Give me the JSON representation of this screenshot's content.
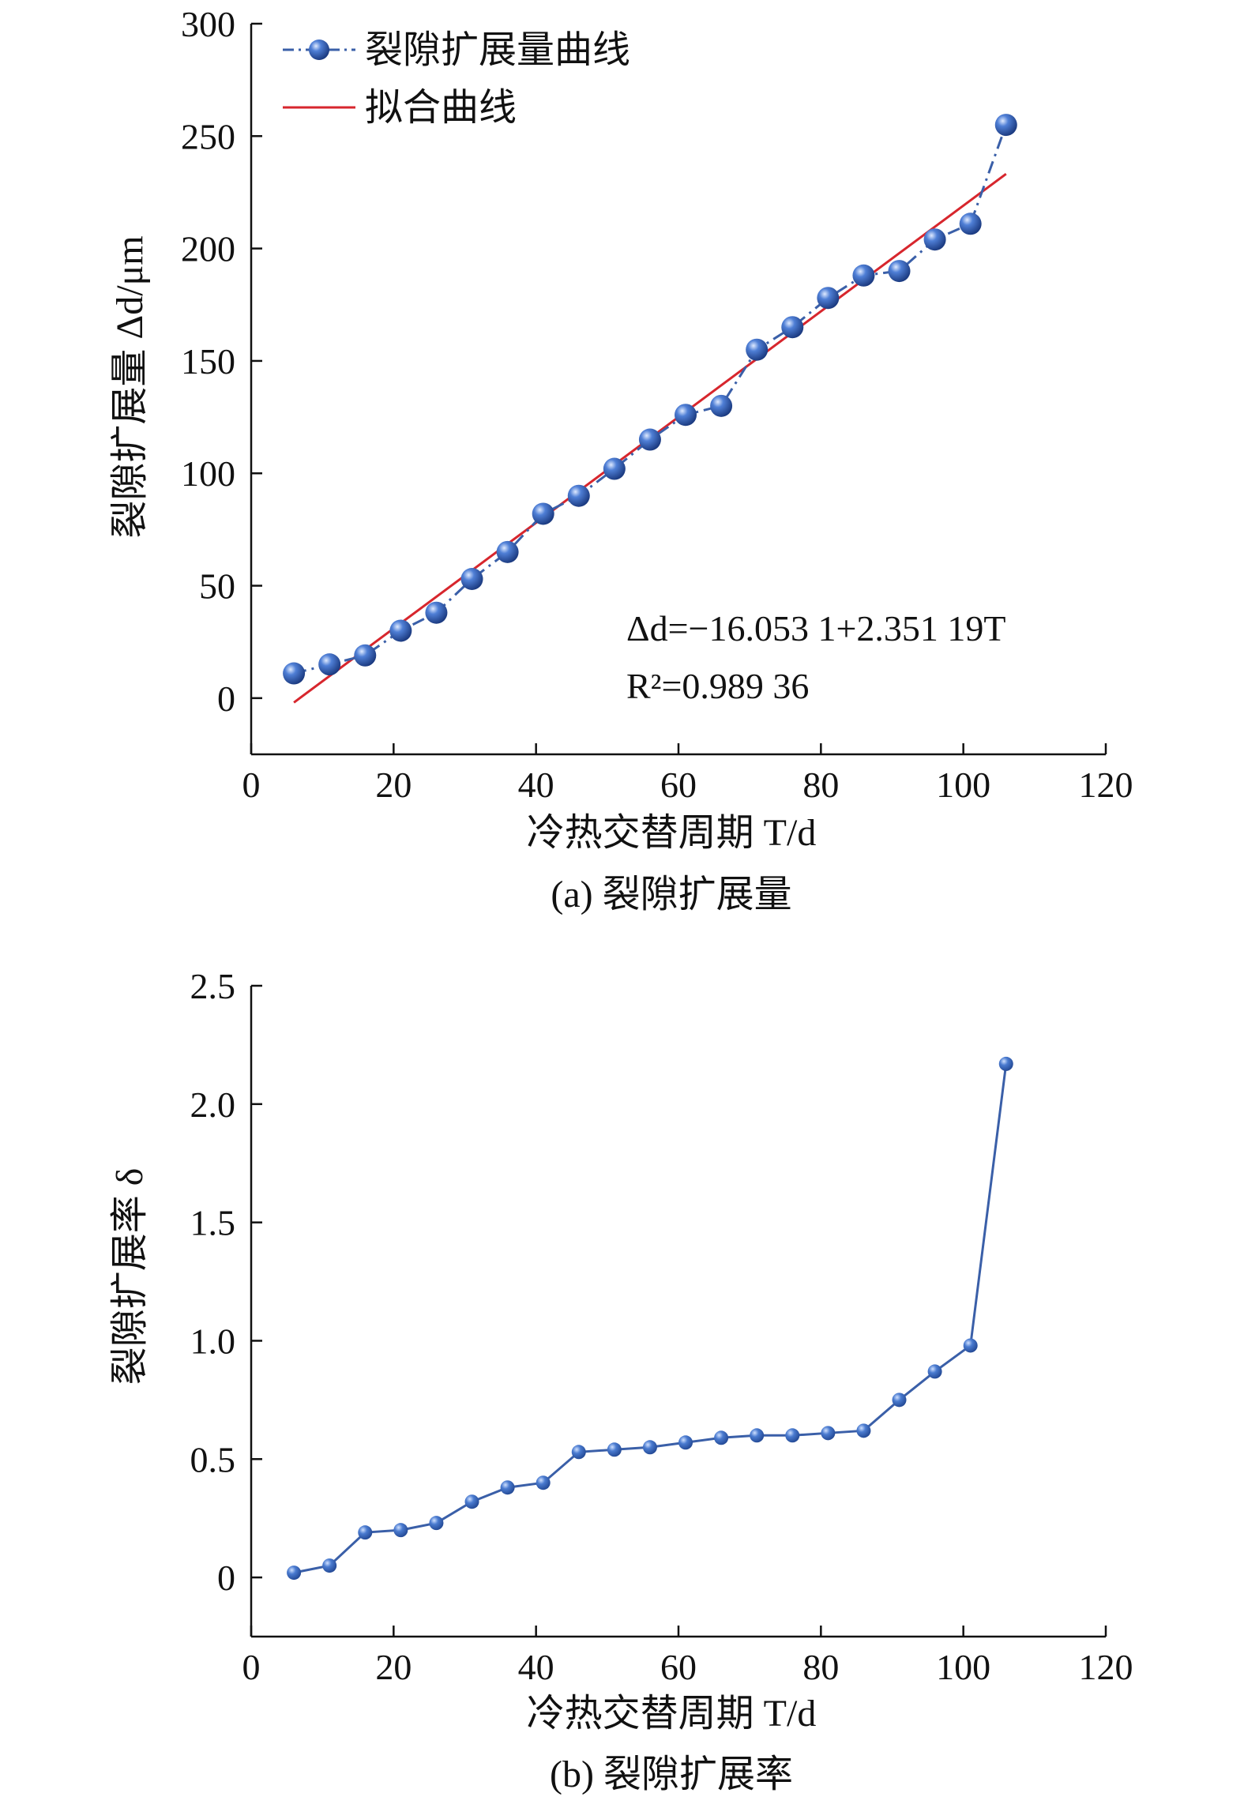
{
  "colors": {
    "marker": "#3f6fc9",
    "marker_highlight": "#cfe0ff",
    "marker_shadow": "#1d3f86",
    "series_line": "#3a5fa8",
    "fit_line": "#d7262d",
    "axis": "#111111"
  },
  "chart_data": [
    {
      "type": "line",
      "caption": "(a) 裂隙扩展量",
      "xlabel": "冷热交替周期 T/d",
      "ylabel": "裂隙扩展量 Δd/μm",
      "xlim": [
        0,
        120
      ],
      "ylim": [
        -25,
        300
      ],
      "x_ticks": [
        0,
        20,
        40,
        60,
        80,
        100,
        120
      ],
      "y_ticks": [
        0,
        50,
        100,
        150,
        200,
        250,
        300
      ],
      "legend_position": "top-left",
      "series": [
        {
          "name": "裂隙扩展量曲线",
          "style": "dash-dot line with sphere markers",
          "x": [
            6,
            11,
            16,
            21,
            26,
            31,
            36,
            41,
            46,
            51,
            56,
            61,
            66,
            71,
            76,
            81,
            86,
            91,
            96,
            101,
            106
          ],
          "y": [
            11,
            15,
            19,
            30,
            38,
            53,
            65,
            82,
            90,
            102,
            115,
            126,
            130,
            155,
            165,
            178,
            188,
            190,
            204,
            211,
            255
          ]
        },
        {
          "name": "拟合曲线",
          "style": "solid line",
          "x": [
            6,
            106
          ],
          "y": [
            -1.95,
            233.17
          ]
        }
      ],
      "annotations": {
        "equation": "Δd=−16.053 1+2.351 19T",
        "r_squared": "R²=0.989 36"
      }
    },
    {
      "type": "line",
      "caption": "(b) 裂隙扩展率",
      "xlabel": "冷热交替周期 T/d",
      "ylabel": "裂隙扩展率 δ",
      "xlim": [
        0,
        120
      ],
      "ylim": [
        -0.25,
        2.5
      ],
      "x_ticks": [
        0,
        20,
        40,
        60,
        80,
        100,
        120
      ],
      "y_ticks": [
        "0",
        "0.5",
        "1.0",
        "1.5",
        "2.0",
        "2.5"
      ],
      "series": [
        {
          "style": "solid line with circle markers",
          "x": [
            6,
            11,
            16,
            21,
            26,
            31,
            36,
            41,
            46,
            51,
            56,
            61,
            66,
            71,
            76,
            81,
            86,
            91,
            96,
            101,
            106
          ],
          "y": [
            0.02,
            0.05,
            0.19,
            0.2,
            0.23,
            0.32,
            0.38,
            0.4,
            0.53,
            0.54,
            0.55,
            0.57,
            0.59,
            0.6,
            0.6,
            0.61,
            0.62,
            0.75,
            0.87,
            0.98,
            2.17
          ]
        }
      ]
    }
  ]
}
